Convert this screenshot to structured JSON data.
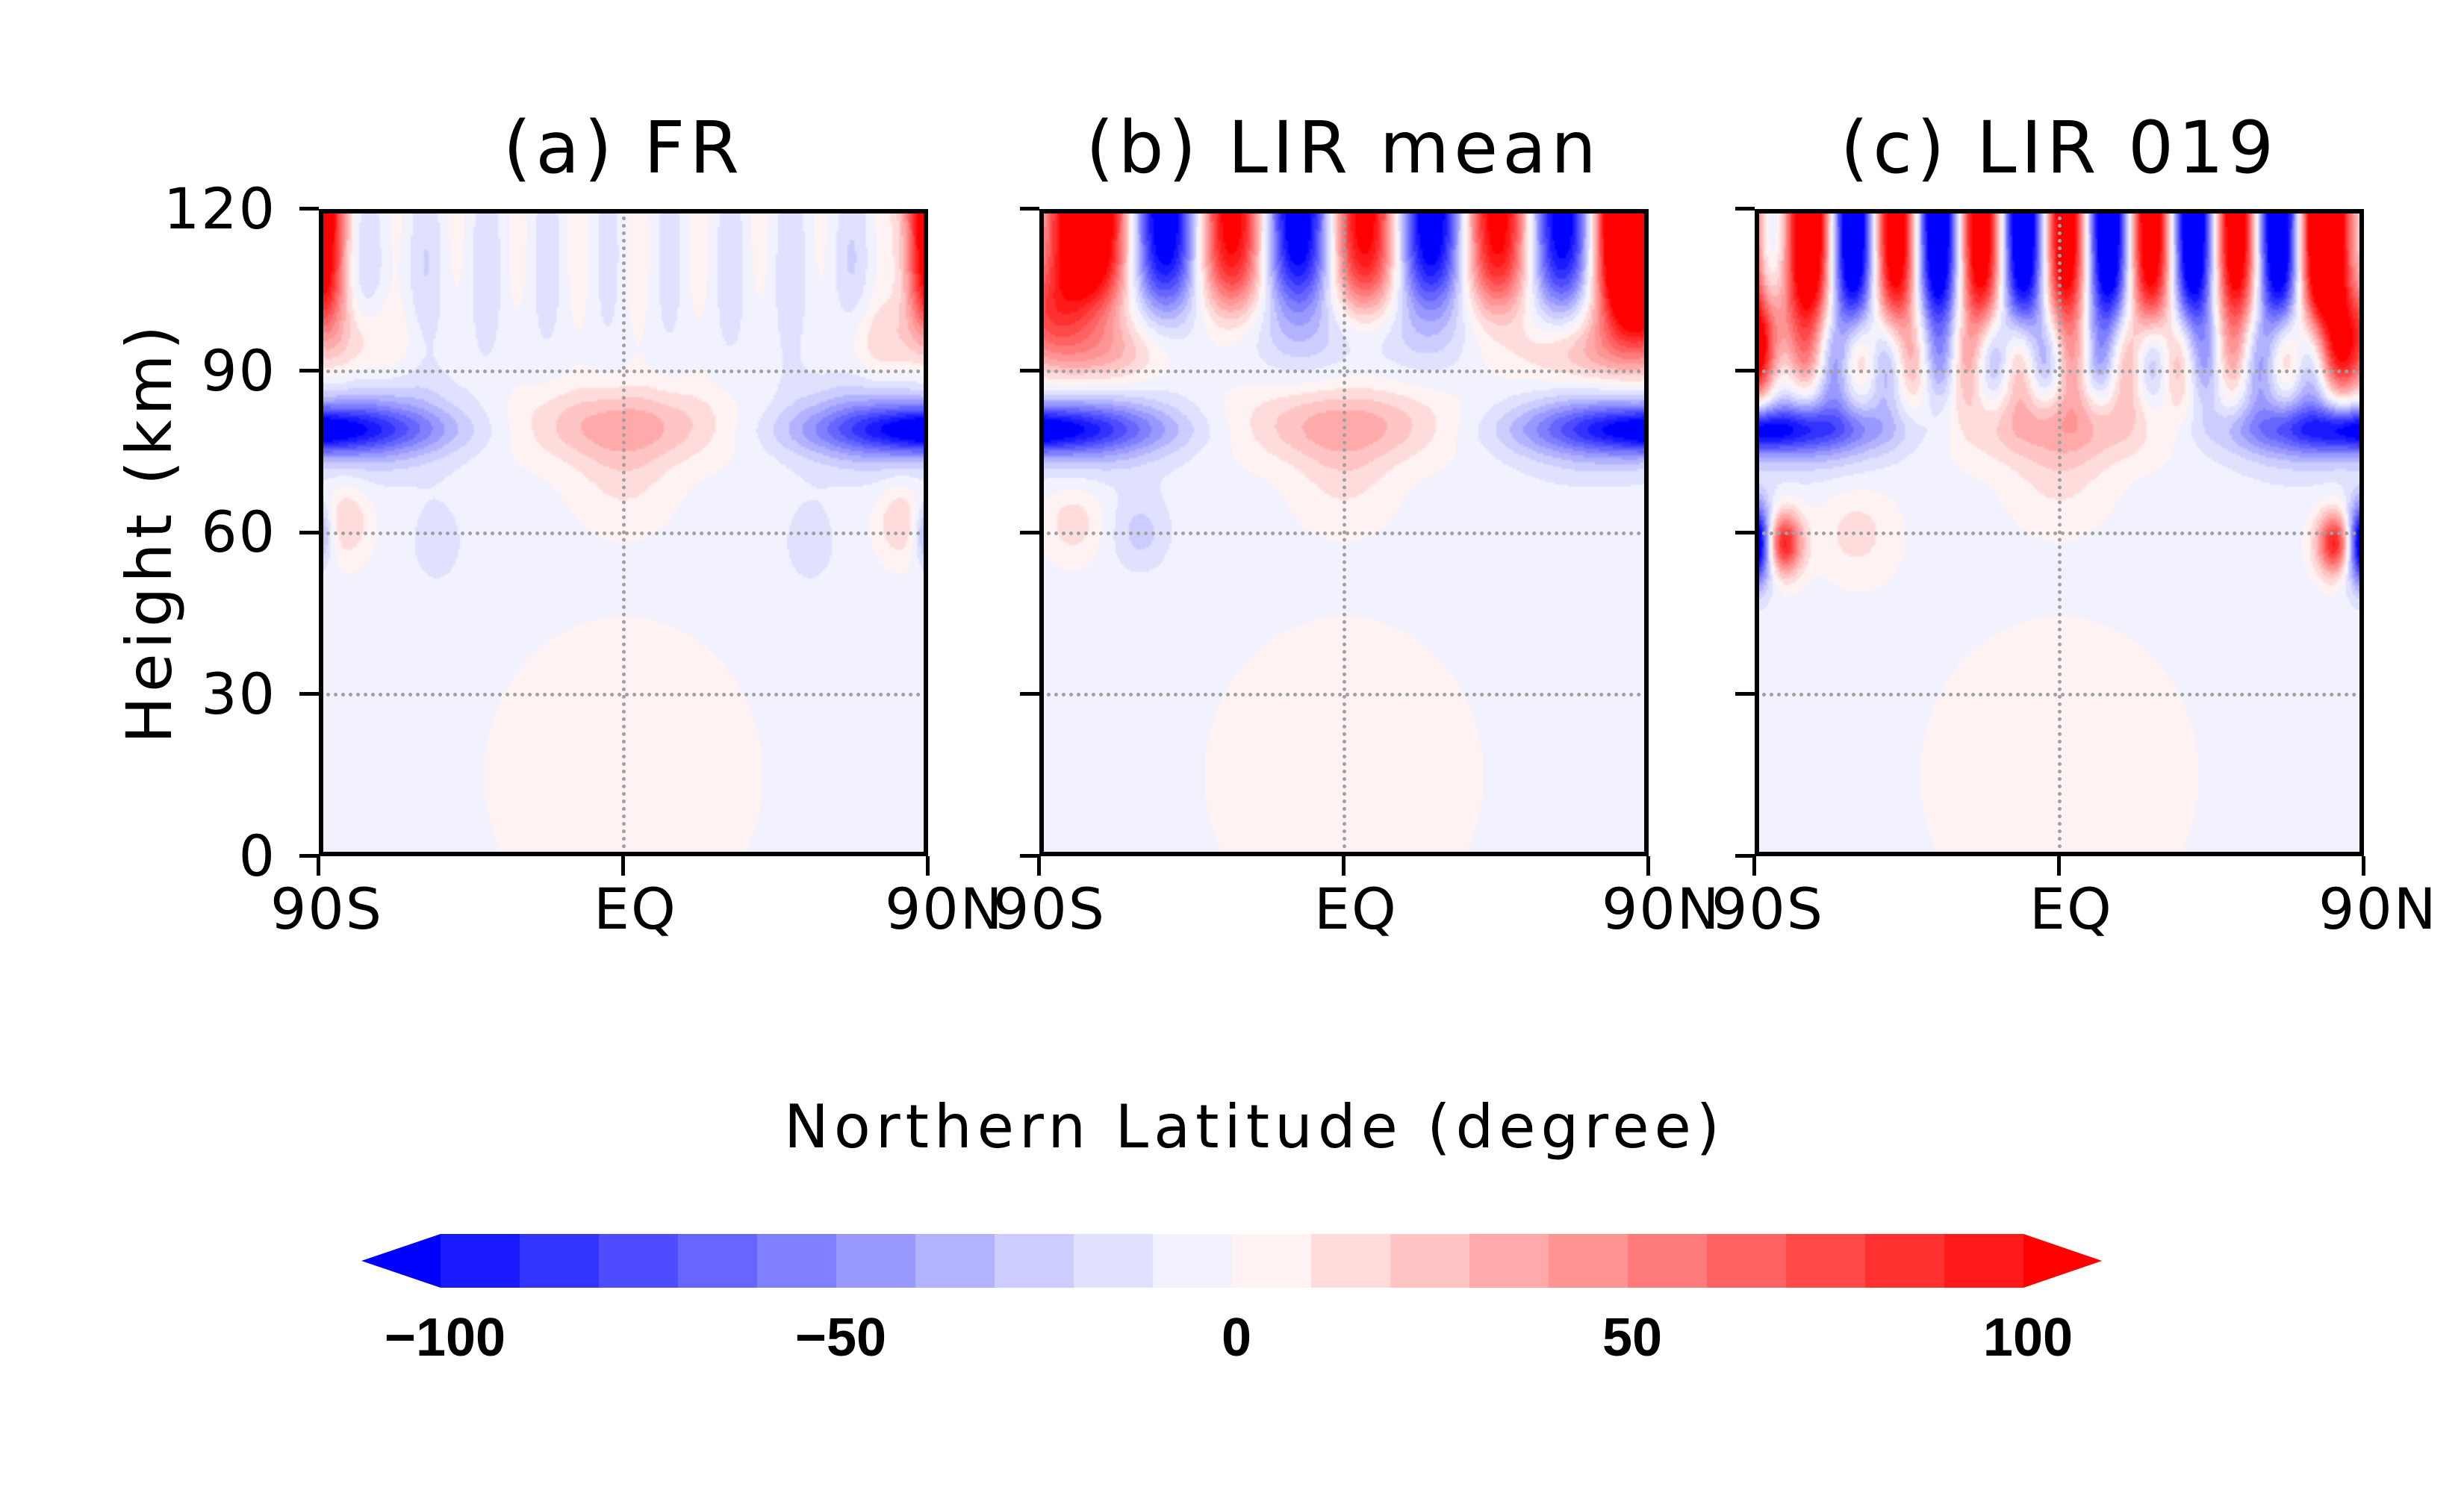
{
  "chart_data": {
    "type": "heatmap",
    "xlabel": "Northern Latitude (degree)",
    "ylabel": "Height (km)",
    "xlim": [
      -90,
      90
    ],
    "ylim": [
      0,
      120
    ],
    "x_ticks": [
      {
        "value": -90,
        "label": "90S"
      },
      {
        "value": 0,
        "label": "EQ"
      },
      {
        "value": 90,
        "label": "90N"
      }
    ],
    "y_ticks": [
      {
        "value": 0,
        "label": "0"
      },
      {
        "value": 30,
        "label": "30"
      },
      {
        "value": 60,
        "label": "60"
      },
      {
        "value": 90,
        "label": "90"
      },
      {
        "value": 120,
        "label": "120"
      }
    ],
    "grid": {
      "horizontal": [
        30,
        60,
        90
      ],
      "vertical": [
        0
      ],
      "style": "dotted"
    },
    "panels": [
      {
        "title": "(a) FR",
        "variant": "fr"
      },
      {
        "title": "(b) LIR mean",
        "variant": "lir_mean"
      },
      {
        "title": "(c) LIR 019",
        "variant": "lir_019"
      }
    ],
    "colorbar": {
      "levels": [
        -100,
        -90,
        -80,
        -70,
        -60,
        -50,
        -40,
        -30,
        -20,
        -10,
        0,
        10,
        20,
        30,
        40,
        50,
        60,
        70,
        80,
        90,
        100
      ],
      "extend": "both",
      "tick_labels": [
        {
          "value": -100,
          "label": "−100"
        },
        {
          "value": -50,
          "label": "−50"
        },
        {
          "value": 0,
          "label": "0"
        },
        {
          "value": 50,
          "label": "50"
        },
        {
          "value": 100,
          "label": "100"
        }
      ],
      "colors": [
        "#0000ff",
        "#1a1aff",
        "#3333ff",
        "#4d4dff",
        "#6666ff",
        "#7f7fff",
        "#9999ff",
        "#b2b2ff",
        "#ccccff",
        "#e0e0ff",
        "#f2f2ff",
        "#fff2f2",
        "#ffdcdc",
        "#ffc4c4",
        "#ffaaaa",
        "#ff9494",
        "#ff7a7a",
        "#ff6262",
        "#ff4848",
        "#ff3030",
        "#ff1a1a",
        "#ff0000"
      ]
    }
  }
}
